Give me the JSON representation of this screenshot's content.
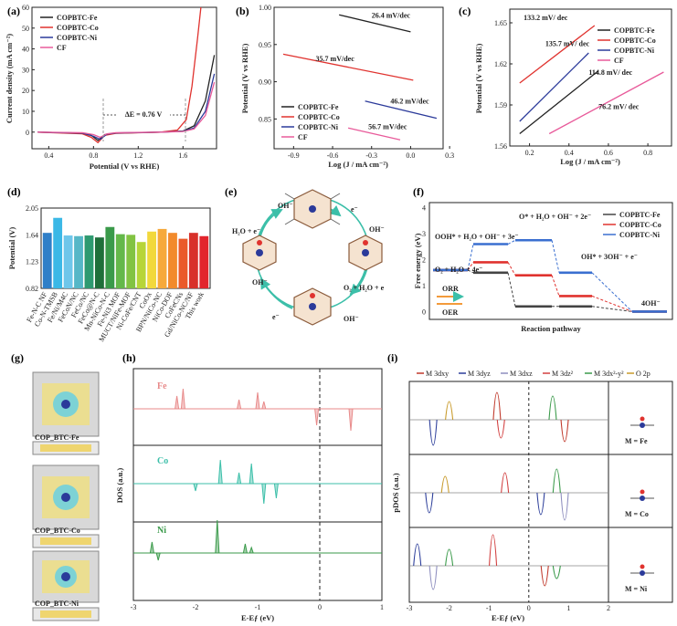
{
  "colors": {
    "fe": "#222222",
    "co": "#e0332f",
    "ni": "#2b3a9a",
    "cf": "#e85a9a",
    "teal": "#3cbfa9",
    "green": "#3a9a4a",
    "gold": "#c89a2a",
    "blue_dash": "#3a6fd0"
  },
  "panel_labels": [
    "(a)",
    "(b)",
    "(c)",
    "(d)",
    "(e)",
    "(f)",
    "(g)",
    "(h)",
    "(i)"
  ],
  "chart_data": [
    {
      "id": "a",
      "type": "line",
      "xlabel": "Potential (V vs RHE)",
      "ylabel": "Current density (mA cm⁻²)",
      "xlim": [
        0.25,
        1.9
      ],
      "ylim": [
        -8,
        60
      ],
      "xticks": [
        "0.4",
        "0.8",
        "1.2",
        "1.6"
      ],
      "yticks": [
        "0",
        "10",
        "20",
        "30",
        "40",
        "50",
        "60"
      ],
      "annotation": "ΔE = 0.76 V",
      "legend": [
        "COP_BTC-Fe",
        "COP_BTC-Co",
        "COP_BTC-Ni",
        "CF"
      ],
      "series": [
        {
          "name": "COP_BTC-Fe",
          "color": "#222222",
          "x": [
            0.3,
            0.7,
            0.78,
            0.84,
            0.9,
            1.0,
            1.4,
            1.6,
            1.7,
            1.8,
            1.88
          ],
          "y": [
            0,
            -0.5,
            -1.5,
            -4,
            -1.2,
            -0.5,
            0,
            0.5,
            3,
            15,
            37
          ]
        },
        {
          "name": "COP_BTC-Co",
          "color": "#e0332f",
          "x": [
            0.3,
            0.7,
            0.78,
            0.84,
            0.9,
            1.0,
            1.4,
            1.55,
            1.63,
            1.68,
            1.73,
            1.76
          ],
          "y": [
            0,
            -0.8,
            -2.5,
            -5,
            -1.6,
            -0.6,
            0,
            1,
            6,
            22,
            45,
            60
          ]
        },
        {
          "name": "COP_BTC-Ni",
          "color": "#2b3a9a",
          "x": [
            0.3,
            0.7,
            0.8,
            0.86,
            0.92,
            1.0,
            1.4,
            1.6,
            1.7,
            1.8,
            1.88
          ],
          "y": [
            0,
            -0.5,
            -2,
            -3.5,
            -1,
            -0.4,
            0,
            0.4,
            2,
            10,
            28
          ]
        },
        {
          "name": "CF",
          "color": "#e85a9a",
          "x": [
            0.3,
            0.7,
            0.8,
            0.86,
            0.92,
            1.0,
            1.4,
            1.6,
            1.7,
            1.8,
            1.88
          ],
          "y": [
            0,
            -0.3,
            -1.2,
            -2.5,
            -0.8,
            -0.3,
            0,
            0.3,
            1.5,
            8,
            24
          ]
        }
      ]
    },
    {
      "id": "b",
      "type": "line",
      "xlabel": "Log (J / mA cm⁻²)",
      "ylabel": "Potential (V vs RHE)",
      "xlim": [
        -1.05,
        0.25
      ],
      "ylim": [
        0.81,
        1.0
      ],
      "xticks": [
        "-0.9",
        "-0.6",
        "-0.3",
        "0.0",
        "0.3"
      ],
      "yticks": [
        "0.85",
        "0.90",
        "0.95",
        "1.00"
      ],
      "legend": [
        "COP_BTC-Fe",
        "COP_BTC-Co",
        "COP_BTC-Ni",
        "CF"
      ],
      "series": [
        {
          "name": "COP_BTC-Fe",
          "color": "#222222",
          "x": [
            -0.55,
            0.0
          ],
          "y": [
            0.99,
            0.967
          ],
          "label": "26.4 mV/dec"
        },
        {
          "name": "COP_BTC-Co",
          "color": "#e0332f",
          "x": [
            -0.98,
            0.02
          ],
          "y": [
            0.937,
            0.902
          ],
          "label": "35.7 mV/dec"
        },
        {
          "name": "COP_BTC-Ni",
          "color": "#2b3a9a",
          "x": [
            -0.35,
            0.2
          ],
          "y": [
            0.874,
            0.851
          ],
          "label": "46.2 mV/dec"
        },
        {
          "name": "CF",
          "color": "#e85a9a",
          "x": [
            -0.48,
            -0.08
          ],
          "y": [
            0.838,
            0.822
          ],
          "label": "56.7 mV/dec"
        }
      ]
    },
    {
      "id": "c",
      "type": "line",
      "xlabel": "Log (J / mA cm⁻²)",
      "ylabel": "Potential (V vs RHE)",
      "xlim": [
        0.1,
        0.92
      ],
      "ylim": [
        1.56,
        1.66
      ],
      "xticks": [
        "0.2",
        "0.4",
        "0.6",
        "0.8"
      ],
      "yticks": [
        "1.56",
        "1.59",
        "1.62",
        "1.65"
      ],
      "legend": [
        "COP_BTC-Fe",
        "COP_BTC-Co",
        "COP_BTC-Ni",
        "CF"
      ],
      "series": [
        {
          "name": "COP_BTC-Fe",
          "color": "#222222",
          "x": [
            0.15,
            0.55
          ],
          "y": [
            1.569,
            1.615
          ],
          "label": "114.8 mV/ dec"
        },
        {
          "name": "COP_BTC-Co",
          "color": "#e0332f",
          "x": [
            0.15,
            0.53
          ],
          "y": [
            1.606,
            1.648
          ],
          "label": "133.2 mV/ dec"
        },
        {
          "name": "COP_BTC-Ni",
          "color": "#2b3a9a",
          "x": [
            0.15,
            0.5
          ],
          "y": [
            1.578,
            1.628
          ],
          "label": "135.7 mV/ dec"
        },
        {
          "name": "CF",
          "color": "#e85a9a",
          "x": [
            0.3,
            0.88
          ],
          "y": [
            1.569,
            1.614
          ],
          "label": "76.2 mV/ dec"
        }
      ]
    },
    {
      "id": "d",
      "type": "bar",
      "ylabel": "Potential (V)",
      "ylim": [
        0.82,
        2.05
      ],
      "yticks": [
        "0.82",
        "1.23",
        "1.64",
        "2.05"
      ],
      "categories": [
        "Fe-N-C NF",
        "Co-N-TMSB",
        "Fe/Ni/M4C",
        "FeCoN/NC",
        "FeCo/NC",
        "FeCo@N-C",
        "Mn-NiCo-N-C",
        "Fe-Ni3 MOF",
        "MUCT/NiFe-MOF",
        "Ni-CoFe/CNT",
        "CoOx",
        "BPN/NiCo-NC",
        "NiCo-DOF",
        "CoFeCNs",
        "Gd/NiCo-NC/NF",
        "This work"
      ],
      "values": [
        1.67,
        1.9,
        1.63,
        1.62,
        1.63,
        1.6,
        1.76,
        1.65,
        1.64,
        1.53,
        1.69,
        1.73,
        1.67,
        1.58,
        1.67,
        1.62
      ],
      "colors": [
        "#2f7fc8",
        "#3bb8e6",
        "#6ec6ea",
        "#56b7c7",
        "#2e9a70",
        "#1f6f3a",
        "#3a9a4a",
        "#64b84a",
        "#82c342",
        "#b7d538",
        "#f2d83c",
        "#f6a93b",
        "#f28a2c",
        "#ea5a2a",
        "#d8312a",
        "#e2252d"
      ]
    },
    {
      "id": "f",
      "type": "line",
      "xlabel": "Reaction pathway",
      "ylabel": "Free energy (eV)",
      "ylim": [
        -0.3,
        4.2
      ],
      "yticks": [
        "0",
        "1",
        "2",
        "3",
        "4"
      ],
      "legend": [
        "COP_BTC-Fe",
        "COP_BTC-Co",
        "COP_BTC-Ni"
      ],
      "labels": [
        "O₂ + H₂O + 4e⁻",
        "OOH* + H₂O + OH⁻ + 3e⁻",
        "O* + H₂O + OH⁻ + 2e⁻",
        "OH* + 3OH⁻ + e⁻",
        "4OH⁻"
      ],
      "arrows": [
        "ORR",
        "OER"
      ],
      "series": [
        {
          "name": "COP_BTC-Fe",
          "color": "#444444",
          "values": [
            1.6,
            1.5,
            0.2,
            0.2,
            0.0
          ]
        },
        {
          "name": "COP_BTC-Co",
          "color": "#e0332f",
          "values": [
            1.6,
            1.9,
            1.4,
            0.6,
            0.0
          ]
        },
        {
          "name": "COP_BTC-Ni",
          "color": "#3a6fd0",
          "values": [
            1.6,
            2.6,
            2.75,
            1.5,
            0.0
          ]
        }
      ]
    },
    {
      "id": "h",
      "type": "line",
      "xlabel": "E-Eƒ (eV)",
      "ylabel": "DOS (a.u.)",
      "xlim": [
        -3,
        1
      ],
      "xticks": [
        "-3",
        "-2",
        "-1",
        "0",
        "1"
      ],
      "series": [
        {
          "name": "Fe",
          "color": "#e88a8a"
        },
        {
          "name": "Co",
          "color": "#3cbfa9"
        },
        {
          "name": "Ni",
          "color": "#3a9a4a"
        }
      ]
    },
    {
      "id": "i",
      "type": "line",
      "xlabel": "E-Eƒ (eV)",
      "ylabel": "pDOS (a.u.)",
      "xlim": [
        -3,
        2
      ],
      "xticks": [
        "-3",
        "-2",
        "-1",
        "0",
        "1",
        "2"
      ],
      "legend": [
        "M 3dxy",
        "M 3dyz",
        "M 3dxz",
        "M 3dz²",
        "M 3dx²-y²",
        "O 2p"
      ],
      "legend_colors": [
        "#c0392b",
        "#2c3e9a",
        "#8e8ebf",
        "#d24040",
        "#3a9a4a",
        "#c89a2a"
      ],
      "rows": [
        "M = Fe",
        "M = Co",
        "M = Ni"
      ]
    }
  ],
  "e_cycle": {
    "labels": [
      "OH⁻",
      "e⁻",
      "H₂O + e⁻",
      "OH⁻",
      "OH⁻",
      "O₂ + H₂O + e",
      "e⁻",
      "OH⁻"
    ]
  },
  "g_labels": [
    "COP_BTC-Fe",
    "COP_BTC-Co",
    "COP_BTC-Ni"
  ]
}
